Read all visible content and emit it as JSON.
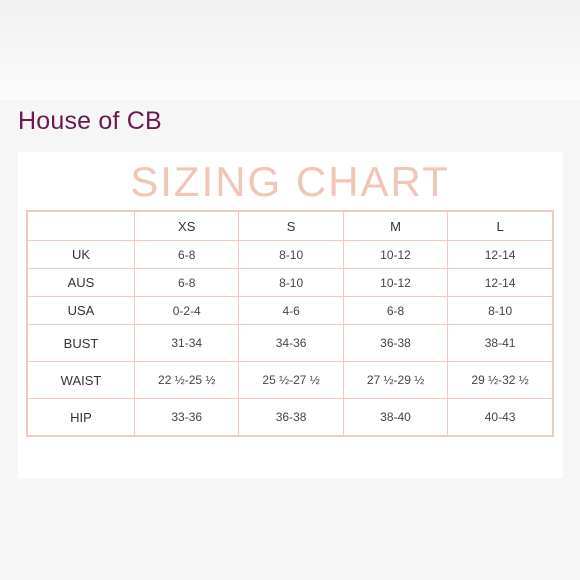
{
  "brand": "House of CB",
  "chart": {
    "title": "SIZING CHART",
    "columns": [
      "",
      "XS",
      "S",
      "M",
      "L"
    ],
    "rows": [
      {
        "label": "UK",
        "values": [
          "6-8",
          "8-10",
          "10-12",
          "12-14"
        ]
      },
      {
        "label": "AUS",
        "values": [
          "6-8",
          "8-10",
          "10-12",
          "12-14"
        ]
      },
      {
        "label": "USA",
        "values": [
          "0-2-4",
          "4-6",
          "6-8",
          "8-10"
        ]
      },
      {
        "label": "BUST",
        "values": [
          "31-34",
          "34-36",
          "36-38",
          "38-41"
        ]
      },
      {
        "label": "WAIST",
        "values": [
          "22 ½-25 ½",
          "25 ½-27 ½",
          "27 ½-29 ½",
          "29 ½-32 ½"
        ]
      },
      {
        "label": "HIP",
        "values": [
          "33-36",
          "36-38",
          "38-40",
          "40-43"
        ]
      }
    ]
  }
}
